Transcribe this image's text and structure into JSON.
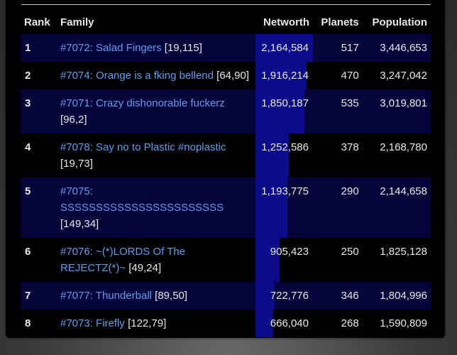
{
  "table": {
    "headers": {
      "rank": "Rank",
      "family": "Family",
      "networth": "Networth",
      "planets": "Planets",
      "population": "Population"
    },
    "max_networth": 2164584,
    "rows": [
      {
        "rank": "1",
        "family_name": "#7072: Salad Fingers",
        "coords": "[19,115]",
        "networth": "2,164,584",
        "networth_value": 2164584,
        "planets": "517",
        "population": "3,446,653"
      },
      {
        "rank": "2",
        "family_name": "#7074: Orange is a fking bellend",
        "coords": "[64,90]",
        "networth": "1,916,214",
        "networth_value": 1916214,
        "planets": "470",
        "population": "3,247,042"
      },
      {
        "rank": "3",
        "family_name": "#7071: Crazy dishonorable fuckerz",
        "coords": "[96,2]",
        "networth": "1,850,187",
        "networth_value": 1850187,
        "planets": "535",
        "population": "3,019,801"
      },
      {
        "rank": "4",
        "family_name": "#7078: Say no to Plastic #noplastic",
        "coords": "[19,73]",
        "networth": "1,252,586",
        "networth_value": 1252586,
        "planets": "378",
        "population": "2,168,780"
      },
      {
        "rank": "5",
        "family_name": "#7075: SSSSSSSSSSSSSSSSSSSSSSS",
        "coords": "[149,34]",
        "networth": "1,193,775",
        "networth_value": 1193775,
        "planets": "290",
        "population": "2,144,658"
      },
      {
        "rank": "6",
        "family_name": "#7076: ~(*)LORDS Of The REJECTZ(*)~",
        "coords": "[49,24]",
        "networth": "905,423",
        "networth_value": 905423,
        "planets": "250",
        "population": "1,825,128"
      },
      {
        "rank": "7",
        "family_name": "#7077: Thunderball",
        "coords": "[89,50]",
        "networth": "722,776",
        "networth_value": 722776,
        "planets": "346",
        "population": "1,804,996"
      },
      {
        "rank": "8",
        "family_name": "#7073: Firefly",
        "coords": "[122,79]",
        "networth": "666,040",
        "networth_value": 666040,
        "planets": "268",
        "population": "1,590,809"
      }
    ]
  }
}
